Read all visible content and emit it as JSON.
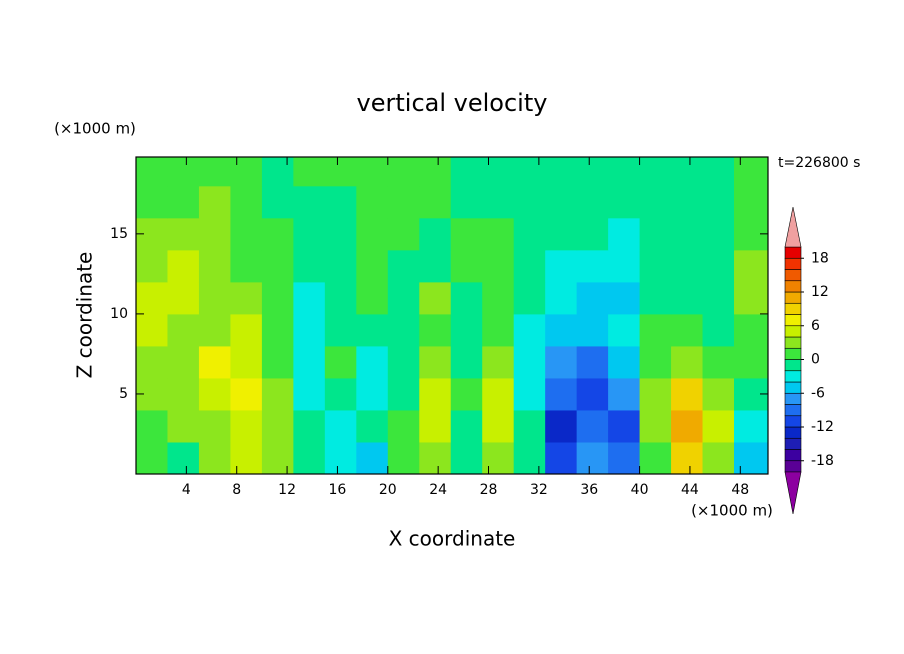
{
  "chart_data": {
    "type": "contour",
    "title": "vertical velocity",
    "x_label": "X coordinate",
    "y_label": "Z coordinate",
    "x_unit": "(×1000 m)",
    "y_unit": "(×1000 m)",
    "time_label": "t=226800 s",
    "xlim": [
      0,
      50.2
    ],
    "ylim": [
      0,
      19.8
    ],
    "xticks": [
      4,
      8,
      12,
      16,
      20,
      24,
      28,
      32,
      36,
      40,
      44,
      48
    ],
    "yticks": [
      5,
      10,
      15
    ],
    "x_bins": [
      0,
      2.5,
      5,
      7.5,
      10,
      12.5,
      15,
      17.5,
      20,
      22.5,
      25,
      27.5,
      30,
      32.5,
      35,
      37.5,
      40,
      42.5,
      45,
      47.5,
      50.2
    ],
    "z_bins": [
      0,
      2,
      4,
      6,
      8,
      10,
      12,
      14,
      16,
      18,
      19.8
    ],
    "values": [
      [
        1,
        -1,
        3,
        5,
        3,
        -1,
        -3,
        -5,
        1,
        3,
        -1,
        3,
        -1,
        -11,
        -7,
        -9,
        1,
        9,
        3,
        -5
      ],
      [
        1,
        3,
        3,
        5,
        3,
        -1,
        -3,
        -1,
        1,
        5,
        -1,
        5,
        -1,
        -13,
        -9,
        -11,
        3,
        11,
        5,
        -3
      ],
      [
        3,
        3,
        5,
        7,
        3,
        -3,
        -1,
        -3,
        -1,
        5,
        1,
        5,
        -3,
        -9,
        -11,
        -7,
        3,
        9,
        3,
        -1
      ],
      [
        3,
        3,
        7,
        5,
        1,
        -3,
        1,
        -3,
        -1,
        3,
        -1,
        3,
        -3,
        -7,
        -9,
        -5,
        1,
        3,
        1,
        1
      ],
      [
        5,
        3,
        3,
        5,
        1,
        -3,
        -1,
        -1,
        -1,
        1,
        -1,
        1,
        -3,
        -5,
        -5,
        -3,
        1,
        1,
        -1,
        1
      ],
      [
        5,
        5,
        3,
        3,
        1,
        -3,
        -1,
        1,
        -1,
        3,
        -1,
        1,
        -1,
        -3,
        -5,
        -5,
        -1,
        -1,
        -1,
        3
      ],
      [
        3,
        5,
        3,
        1,
        1,
        -1,
        -1,
        1,
        -1,
        -1,
        1,
        1,
        -1,
        -3,
        -3,
        -3,
        -1,
        -1,
        -1,
        3
      ],
      [
        3,
        3,
        3,
        1,
        1,
        -1,
        -1,
        1,
        1,
        -1,
        1,
        1,
        -1,
        -1,
        -1,
        -3,
        -1,
        -1,
        -1,
        1
      ],
      [
        1,
        1,
        3,
        1,
        -1,
        -1,
        -1,
        1,
        1,
        1,
        -1,
        -1,
        -1,
        -1,
        -1,
        -1,
        -1,
        -1,
        -1,
        1
      ],
      [
        1,
        1,
        1,
        1,
        -1,
        1,
        1,
        1,
        1,
        1,
        -1,
        -1,
        -1,
        -1,
        -1,
        -1,
        -1,
        -1,
        -1,
        1
      ]
    ],
    "levels": [
      -20,
      -18,
      -16,
      -14,
      -12,
      -10,
      -8,
      -6,
      -4,
      -2,
      0,
      2,
      4,
      6,
      8,
      10,
      12,
      14,
      16,
      18,
      20
    ],
    "colors": [
      "#5a0096",
      "#3c00a0",
      "#1e1eb4",
      "#0a28c8",
      "#1446e6",
      "#1e6ef0",
      "#2896f5",
      "#00c8f0",
      "#00ebe1",
      "#00e68c",
      "#3ce63c",
      "#8ce61e",
      "#c8f000",
      "#f0f000",
      "#f0d200",
      "#f0aa00",
      "#f08200",
      "#f05a00",
      "#f03200",
      "#e60000"
    ],
    "extend_colors": [
      "#8c00a0",
      "#f0a0a0"
    ],
    "colorbar_ticks": [
      -18,
      -12,
      -6,
      0,
      6,
      12,
      18
    ]
  }
}
